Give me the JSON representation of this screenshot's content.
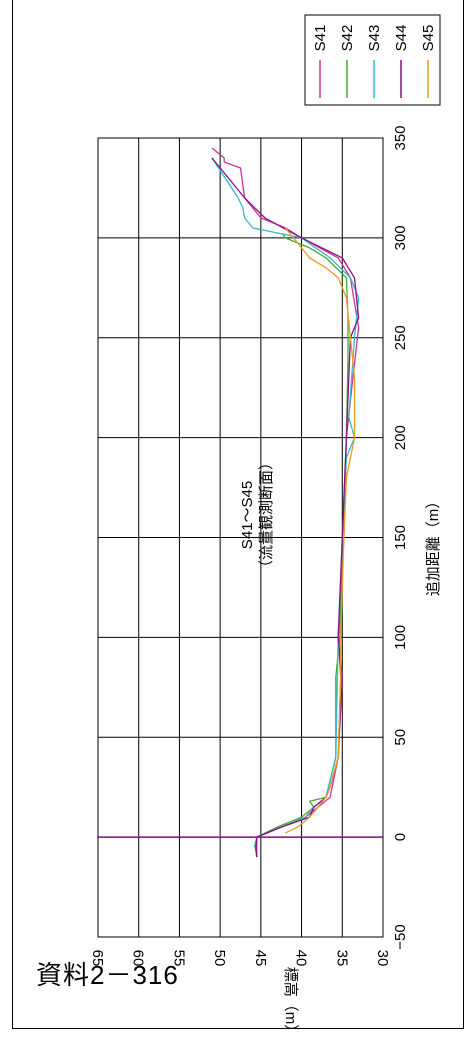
{
  "doc_label": "資料2－316",
  "chart_data": {
    "type": "line",
    "title": "S41～S45",
    "subtitle": "（流量観測断面）",
    "xlabel": "追加距離（m）",
    "ylabel": "標高（m）",
    "xlim": [
      -50,
      350
    ],
    "ylim": [
      30,
      65
    ],
    "x_ticks": [
      "−50",
      "0",
      "50",
      "100",
      "150",
      "200",
      "250",
      "300",
      "350"
    ],
    "y_ticks": [
      "30",
      "35",
      "40",
      "45",
      "50",
      "55",
      "60",
      "65"
    ],
    "grid": true,
    "legend_position": "top-right",
    "vertical_marker_x": 0,
    "series": [
      {
        "name": "S41",
        "color": "#cc3399",
        "x": [
          -10,
          0,
          5,
          10,
          15,
          20,
          40,
          80,
          100,
          150,
          200,
          230,
          255,
          280,
          290,
          300,
          305,
          310,
          320,
          335,
          338,
          340,
          345
        ],
        "y": [
          45.5,
          45.5,
          42.5,
          39.5,
          38,
          36.5,
          35.5,
          35.2,
          35.5,
          34.8,
          34.5,
          33.7,
          33,
          34,
          35.5,
          40,
          42,
          45,
          47,
          47.5,
          49.5,
          49.5,
          51
        ]
      },
      {
        "name": "S42",
        "color": "#44aa33",
        "x": [
          -10,
          -5,
          0,
          5,
          10,
          15,
          18,
          20,
          40,
          80,
          100,
          150,
          200,
          240,
          260,
          280,
          290,
          295,
          300,
          302
        ],
        "y": [
          45.5,
          45.7,
          45.5,
          43,
          40,
          38.5,
          39,
          37,
          35.8,
          35.8,
          35.3,
          35,
          34.5,
          34.3,
          34.3,
          34.5,
          37,
          39,
          42,
          42.3
        ]
      },
      {
        "name": "S43",
        "color": "#33bbcc",
        "x": [
          -5,
          0,
          5,
          10,
          15,
          20,
          40,
          80,
          100,
          150,
          190,
          200,
          210,
          250,
          270,
          280,
          290,
          300,
          305,
          310,
          315,
          320,
          340
        ],
        "y": [
          45.8,
          45.5,
          42.5,
          39.5,
          38.5,
          37,
          35.8,
          35.6,
          35.5,
          35,
          34.5,
          33.5,
          34.2,
          33.5,
          33,
          34,
          36.5,
          40,
          46,
          47,
          47.2,
          47.8,
          51
        ]
      },
      {
        "name": "S44",
        "color": "#881188",
        "x": [
          -10,
          -5,
          0,
          5,
          10,
          15,
          20,
          25,
          40,
          80,
          100,
          150,
          200,
          250,
          260,
          280,
          290,
          300,
          310,
          320,
          340
        ],
        "y": [
          45.5,
          45.6,
          45.5,
          42.5,
          39,
          38.5,
          37,
          36.5,
          35.5,
          35,
          35.5,
          35,
          34.5,
          34,
          33,
          33.5,
          35,
          40,
          44.5,
          47,
          51
        ]
      },
      {
        "name": "S45",
        "color": "#ee9922",
        "x": [
          2,
          5,
          10,
          15,
          20,
          25,
          40,
          80,
          100,
          150,
          180,
          200,
          230,
          250,
          270,
          280,
          285,
          290,
          295,
          300,
          305
        ],
        "y": [
          42,
          40.5,
          39,
          38,
          37,
          36.5,
          35.5,
          35.2,
          35.2,
          34.8,
          34.5,
          33.5,
          33.5,
          34,
          34.5,
          35.5,
          37,
          39,
          40,
          41,
          42
        ]
      }
    ]
  }
}
